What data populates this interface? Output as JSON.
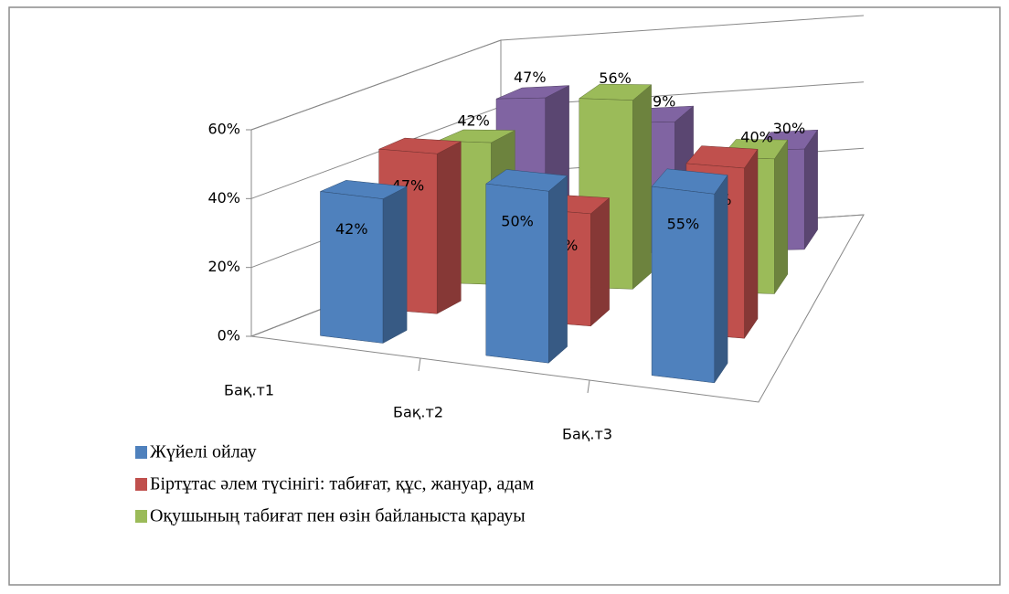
{
  "chart_data": {
    "type": "bar3d",
    "categories": [
      "Бақ.т1",
      "Бақ.т2",
      "Бақ.т3"
    ],
    "series": [
      {
        "name": "Жүйелі ойлау",
        "color": "#4f81bd",
        "values": [
          42,
          50,
          55
        ],
        "value_labels": [
          "42%",
          "50%",
          "55%"
        ]
      },
      {
        "name": "Біртұтас әлем түсінігі: табиғат, құс, жануар, адам",
        "color": "#c0504d",
        "values": [
          47,
          33,
          50
        ],
        "value_labels": [
          "47%",
          "33%",
          "50%"
        ]
      },
      {
        "name": "Оқушының табиғат пен өзін байланыста қарауы",
        "color": "#9bbb59",
        "values": [
          42,
          56,
          40
        ],
        "value_labels": [
          "42%",
          "56%",
          "40%"
        ]
      },
      {
        "color": "#8064a2",
        "values": [
          47,
          39,
          30
        ],
        "value_labels": [
          "47%",
          "39%",
          "30%"
        ]
      }
    ],
    "ylim": [
      0,
      60
    ],
    "yticks": [
      {
        "value": 0,
        "label": "0%"
      },
      {
        "value": 20,
        "label": "20%"
      },
      {
        "value": 40,
        "label": "40%"
      },
      {
        "value": 60,
        "label": "60%"
      }
    ],
    "grid": true
  }
}
